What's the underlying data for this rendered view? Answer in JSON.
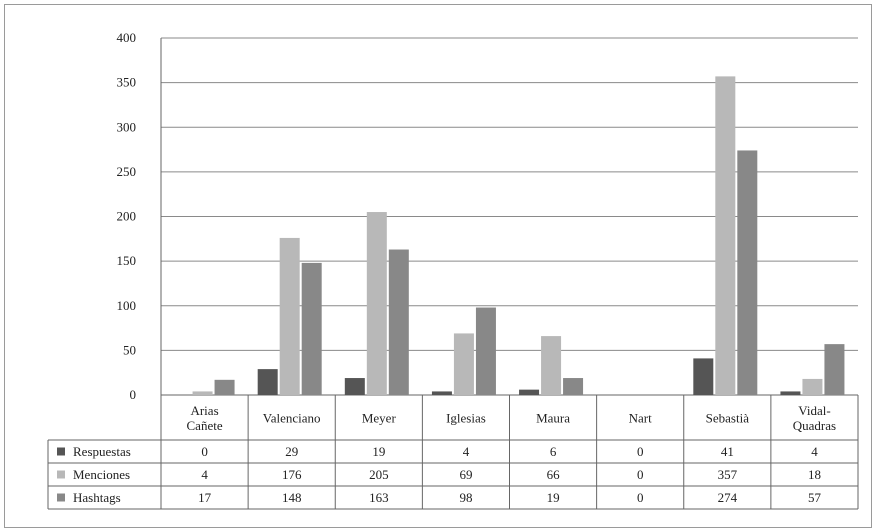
{
  "chart_data": {
    "type": "bar",
    "categories": [
      [
        "Arias",
        "Cañete"
      ],
      [
        "Valenciano"
      ],
      [
        "Meyer"
      ],
      [
        "Iglesias"
      ],
      [
        "Maura"
      ],
      [
        "Nart"
      ],
      [
        "Sebastià"
      ],
      [
        "Vidal-",
        "Quadras"
      ]
    ],
    "series": [
      {
        "name": "Respuestas",
        "color": "#555555",
        "values": [
          0,
          29,
          19,
          4,
          6,
          0,
          41,
          4
        ]
      },
      {
        "name": "Menciones",
        "color": "#b8b8b8",
        "values": [
          4,
          176,
          205,
          69,
          66,
          0,
          357,
          18
        ]
      },
      {
        "name": "Hashtags",
        "color": "#888888",
        "values": [
          17,
          148,
          163,
          98,
          19,
          0,
          274,
          57
        ]
      }
    ],
    "ylim": [
      0,
      400
    ],
    "yticks": [
      0,
      50,
      100,
      150,
      200,
      250,
      300,
      350,
      400
    ],
    "grid": true,
    "legend": "data-table",
    "title": "",
    "xlabel": "",
    "ylabel": ""
  }
}
